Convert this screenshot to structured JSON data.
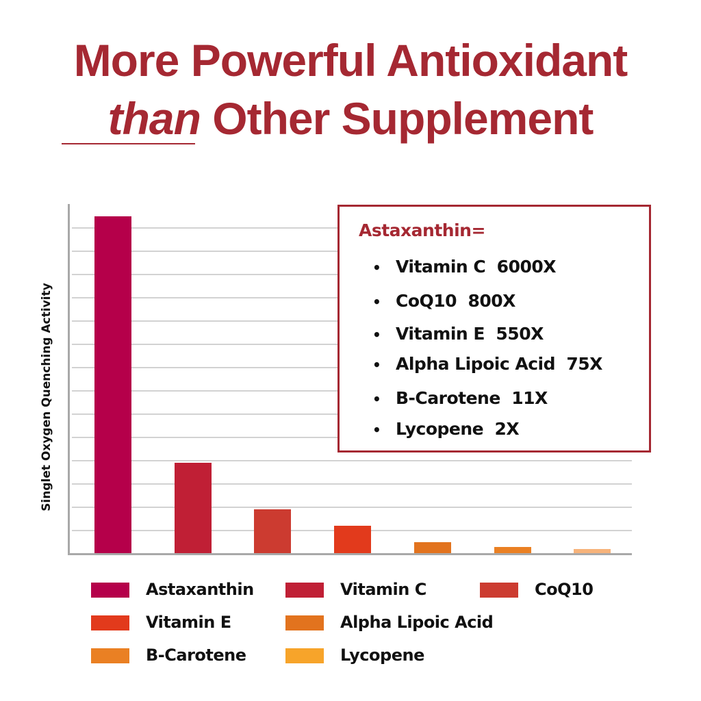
{
  "header": {
    "title_line1": "More Powerful Antioxidant",
    "title_line2_emphasis": "than",
    "title_line2_rest": " Other Supplement"
  },
  "callout": {
    "title": "Astaxanthin=",
    "bullet": "•",
    "items": [
      {
        "name": "Vitamin C",
        "multiplier": "6000X",
        "text": "Vitamin C  6000X"
      },
      {
        "name": "CoQ10",
        "multiplier": "800X",
        "text": "CoQ10  800X"
      },
      {
        "name": "Vitamin E",
        "multiplier": "550X",
        "text": "Vitamin E  550X"
      },
      {
        "name": "Alpha Lipoic Acid",
        "multiplier": "75X",
        "text": "Alpha Lipoic Acid  75X"
      },
      {
        "name": "B-Carotene",
        "multiplier": "11X",
        "text": "B-Carotene  11X"
      },
      {
        "name": "Lycopene",
        "multiplier": "2X",
        "text": "Lycopene  2X"
      }
    ]
  },
  "colors": {
    "title": "#a52832",
    "axis": "#a8a8a8",
    "grid": "#d2d2d2",
    "callout_border": "#a52832"
  },
  "chart_data": {
    "type": "bar",
    "title": "More Powerful Antioxidant than Other Supplement",
    "xlabel": "",
    "ylabel": "Singlet Oxygen Quenching Activity",
    "categories": [
      "Astaxanthin",
      "Vitamin C",
      "CoQ10",
      "Vitamin E",
      "Alpha Lipoic Acid",
      "B-Carotene",
      "Lycopene"
    ],
    "values": [
      14.5,
      3.9,
      1.9,
      1.2,
      0.5,
      0.3,
      0.2
    ],
    "value_units": "gridline units (y-axis has no tick labels)",
    "colors": [
      "#b5004a",
      "#c01f35",
      "#cc3b30",
      "#e23a1c",
      "#e2731e",
      "#ea8023",
      "#f7b37a"
    ],
    "legend_colors": [
      "#b5004a",
      "#c01f35",
      "#cc3b30",
      "#e23a1c",
      "#e2731e",
      "#ea8023",
      "#f7a42a"
    ],
    "ylim": [
      0,
      15
    ],
    "gridlines": 14,
    "grid": true,
    "y_tick_labels": false,
    "legend_position": "bottom",
    "annotation": "Astaxanthin= Vitamin C 6000X, CoQ10 800X, Vitamin E 550X, Alpha Lipoic Acid 75X, B-Carotene 11X, Lycopene 2X"
  }
}
